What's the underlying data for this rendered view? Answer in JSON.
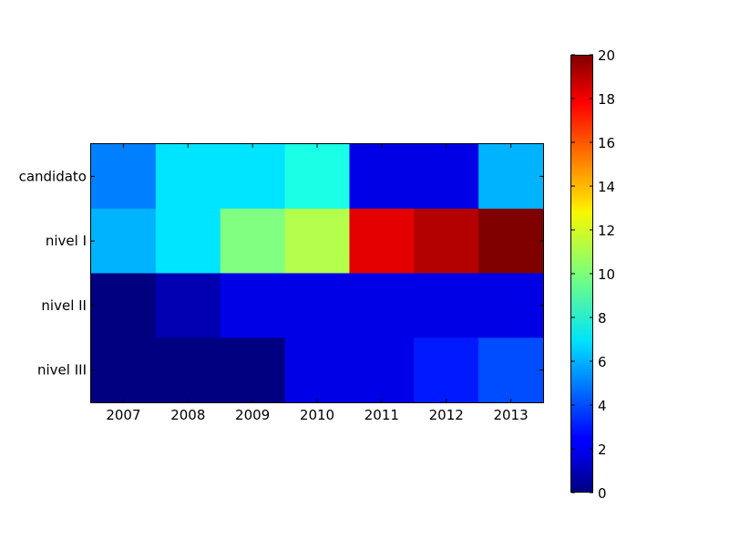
{
  "chart_data": {
    "type": "heatmap",
    "title": "",
    "xlabel": "",
    "ylabel": "",
    "x_categories": [
      "2007",
      "2008",
      "2009",
      "2010",
      "2011",
      "2012",
      "2013"
    ],
    "y_categories": [
      "candidato",
      "nivel I",
      "nivel II",
      "nivel III"
    ],
    "values": [
      [
        5,
        7,
        7,
        8,
        2,
        2,
        6
      ],
      [
        6,
        7,
        10,
        11,
        18,
        19,
        20
      ],
      [
        0,
        1,
        2,
        2,
        2,
        2,
        2
      ],
      [
        0,
        0,
        0,
        2,
        2,
        3,
        4
      ]
    ],
    "colorbar": {
      "min": 0,
      "max": 20,
      "ticks": [
        "0",
        "2",
        "4",
        "6",
        "8",
        "10",
        "12",
        "14",
        "16",
        "18",
        "20"
      ],
      "colormap": "jet",
      "placement": "right"
    },
    "grid": false
  }
}
